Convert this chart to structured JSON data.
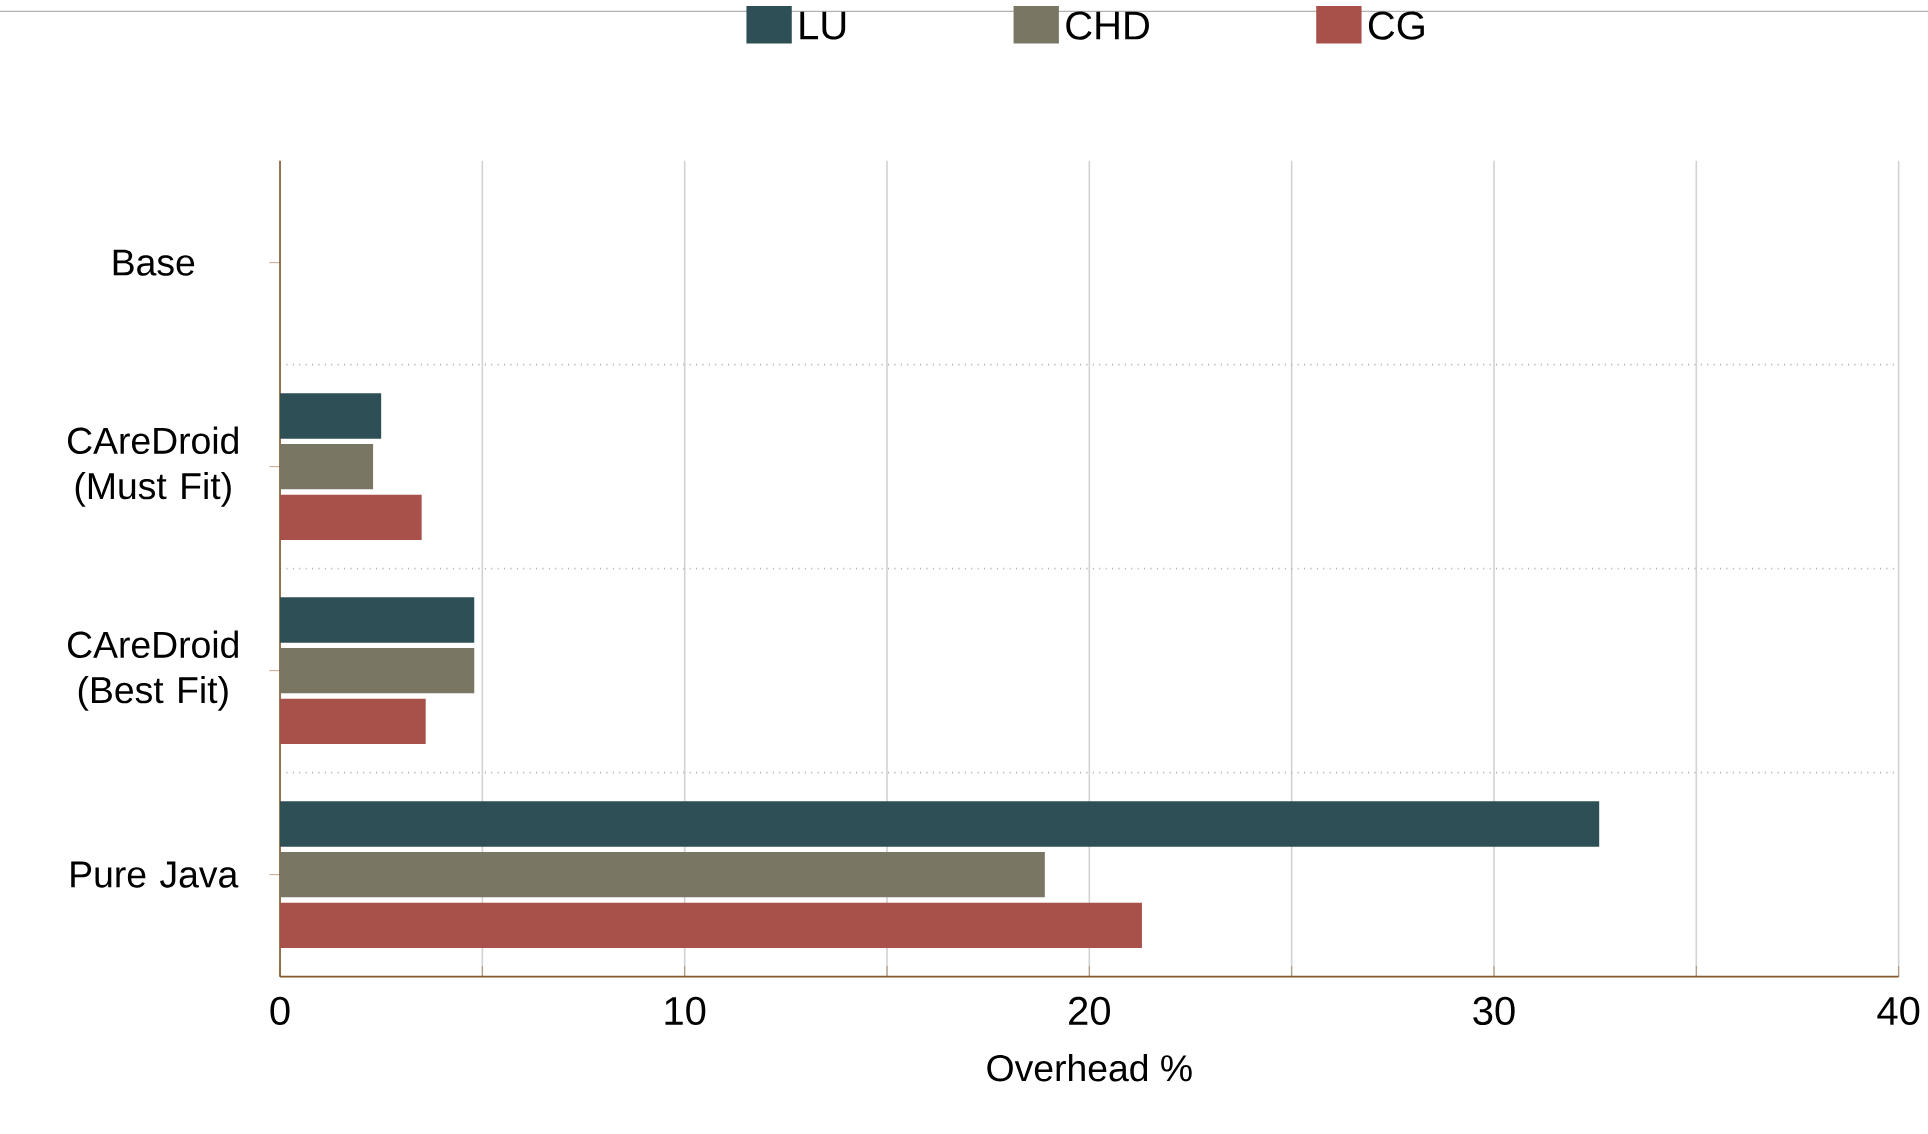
{
  "chart_data": {
    "type": "bar",
    "orientation": "horizontal",
    "xlabel": "Overhead %",
    "categories": [
      "Base",
      "CAreDroid (Must Fit)",
      "CAreDroid (Best Fit)",
      "Pure Java"
    ],
    "series": [
      {
        "name": "LU",
        "color": "#2d4f55",
        "values": [
          0,
          2.5,
          4.8,
          32.6
        ]
      },
      {
        "name": "CHD",
        "color": "#7a7664",
        "values": [
          0,
          2.3,
          4.8,
          18.9
        ]
      },
      {
        "name": "CG",
        "color": "#a8504a",
        "values": [
          0,
          3.5,
          3.6,
          21.3
        ]
      }
    ],
    "xlim": [
      0,
      40
    ],
    "xticks": [
      0,
      {
        "value": 5,
        "label": null
      },
      10,
      {
        "value": 15,
        "label": null
      },
      20,
      {
        "value": 25,
        "label": null
      },
      30,
      {
        "value": 35,
        "label": null
      },
      40
    ],
    "grid": "x",
    "legend": "top"
  }
}
